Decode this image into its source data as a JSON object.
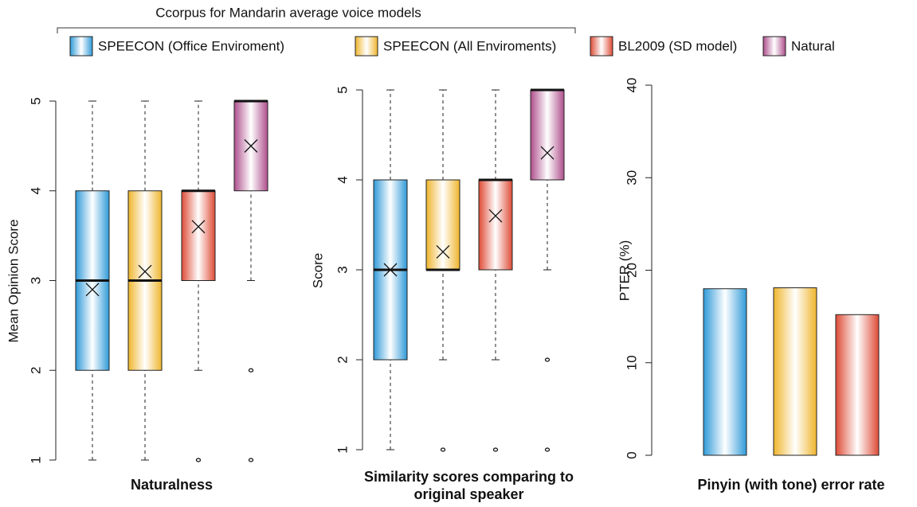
{
  "header": {
    "title": "Ccorpus for Mandarin average voice models"
  },
  "legend": {
    "entries": [
      {
        "name": "SPEECON (Office Enviroment)",
        "color": "#2f9ad8"
      },
      {
        "name": "SPEECON (All Enviroments)",
        "color": "#efb52c"
      },
      {
        "name": "BL2009 (SD model)",
        "color": "#de4b36"
      },
      {
        "name": "Natural",
        "color": "#ae4f8c"
      }
    ]
  },
  "chart_data": [
    {
      "type": "box",
      "title": "Naturalness",
      "ylabel": "Mean Opinion Score",
      "ylim": [
        1,
        5
      ],
      "yticks": [
        1,
        2,
        3,
        4,
        5
      ],
      "boxes": [
        {
          "min": 1,
          "q1": 2,
          "median": 3,
          "q3": 4,
          "max": 5,
          "mean": 2.9,
          "outliers": []
        },
        {
          "min": 1,
          "q1": 2,
          "median": 3,
          "q3": 4,
          "max": 5,
          "mean": 3.1,
          "outliers": []
        },
        {
          "min": 2,
          "q1": 3,
          "median": 4,
          "q3": 4,
          "max": 5,
          "mean": 3.6,
          "outliers": [
            1
          ]
        },
        {
          "min": 3,
          "q1": 4,
          "median": 5,
          "q3": 5,
          "max": 5,
          "mean": 4.5,
          "outliers": [
            2,
            1
          ]
        }
      ]
    },
    {
      "type": "box",
      "title": "Similarity scores comparing to original speaker",
      "ylabel": "Score",
      "ylim": [
        1,
        5
      ],
      "yticks": [
        1,
        2,
        3,
        4,
        5
      ],
      "boxes": [
        {
          "min": 1,
          "q1": 2,
          "median": 3,
          "q3": 4,
          "max": 5,
          "mean": 3.0,
          "outliers": []
        },
        {
          "min": 2,
          "q1": 3,
          "median": 3,
          "q3": 4,
          "max": 5,
          "mean": 3.2,
          "outliers": [
            1
          ]
        },
        {
          "min": 2,
          "q1": 3,
          "median": 4,
          "q3": 4,
          "max": 5,
          "mean": 3.6,
          "outliers": [
            1
          ]
        },
        {
          "min": 3,
          "q1": 4,
          "median": 5,
          "q3": 5,
          "max": 5,
          "mean": 4.3,
          "outliers": [
            2,
            1
          ]
        }
      ]
    },
    {
      "type": "bar",
      "title": "Pinyin (with tone) error rate",
      "ylabel": "PTER (%)",
      "ylim": [
        0,
        40
      ],
      "yticks": [
        0,
        10,
        20,
        30,
        40
      ],
      "values": [
        18.0,
        18.1,
        15.2
      ]
    }
  ]
}
